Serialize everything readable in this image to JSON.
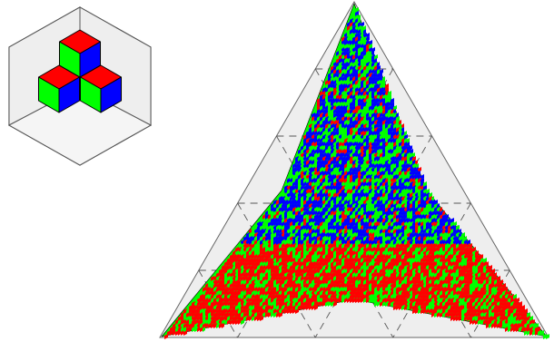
{
  "colors": {
    "red": "#ff0000",
    "green": "#00ff00",
    "blue": "#0000ff",
    "outline": "#000000",
    "panel_fill": "#eeeeee",
    "frame_stroke": "#555555",
    "dash_stroke": "#555555",
    "background": "#ffffff"
  },
  "inset": {
    "description_icon": "isometric-cube-stack-icon",
    "cube_count": 3
  },
  "main": {
    "description_icon": "triangular-tiling-surface",
    "grid_divisions": 5,
    "surface_faces": [
      "red",
      "green",
      "blue"
    ]
  }
}
